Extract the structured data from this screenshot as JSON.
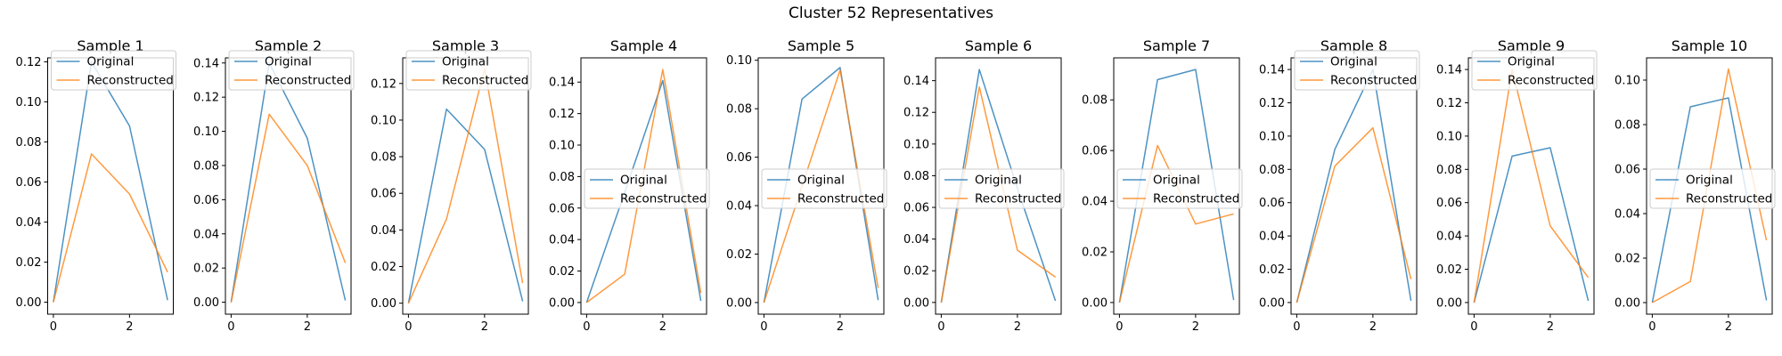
{
  "figure": {
    "title": "Cluster 52 Representatives"
  },
  "colors": {
    "original": "#1f77b4",
    "reconstructed": "#ff7f0e"
  },
  "chart_data": [
    {
      "type": "line",
      "title": "Sample 1",
      "x": [
        0,
        1,
        2,
        3
      ],
      "series": [
        {
          "name": "Original",
          "values": [
            0.0,
            0.12,
            0.088,
            0.001
          ]
        },
        {
          "name": "Reconstructed",
          "values": [
            0.0,
            0.074,
            0.054,
            0.015
          ]
        }
      ],
      "ylim": [
        -0.006,
        0.122
      ],
      "yticks": [
        0.0,
        0.02,
        0.04,
        0.06,
        0.08,
        0.1,
        0.12
      ],
      "yticklabels": [
        "0.00",
        "0.02",
        "0.04",
        "0.06",
        "0.08",
        "0.10",
        "0.12"
      ],
      "xticks": [
        0,
        2
      ],
      "legend": "upper-left"
    },
    {
      "type": "line",
      "title": "Sample 2",
      "x": [
        0,
        1,
        2,
        3
      ],
      "series": [
        {
          "name": "Original",
          "values": [
            0.0,
            0.14,
            0.096,
            0.001
          ]
        },
        {
          "name": "Reconstructed",
          "values": [
            0.0,
            0.11,
            0.08,
            0.023
          ]
        }
      ],
      "ylim": [
        -0.007,
        0.143
      ],
      "yticks": [
        0.0,
        0.02,
        0.04,
        0.06,
        0.08,
        0.1,
        0.12,
        0.14
      ],
      "yticklabels": [
        "0.00",
        "0.02",
        "0.04",
        "0.06",
        "0.08",
        "0.10",
        "0.12",
        "0.14"
      ],
      "xticks": [
        0,
        2
      ],
      "legend": "upper-left"
    },
    {
      "type": "line",
      "title": "Sample 3",
      "x": [
        0,
        1,
        2,
        3
      ],
      "series": [
        {
          "name": "Original",
          "values": [
            0.0,
            0.106,
            0.084,
            0.001
          ]
        },
        {
          "name": "Reconstructed",
          "values": [
            0.0,
            0.046,
            0.128,
            0.011
          ]
        }
      ],
      "ylim": [
        -0.006,
        0.134
      ],
      "yticks": [
        0.0,
        0.02,
        0.04,
        0.06,
        0.08,
        0.1,
        0.12
      ],
      "yticklabels": [
        "0.00",
        "0.02",
        "0.04",
        "0.06",
        "0.08",
        "0.10",
        "0.12"
      ],
      "xticks": [
        0,
        2
      ],
      "legend": "upper-left"
    },
    {
      "type": "line",
      "title": "Sample 4",
      "x": [
        0,
        1,
        2,
        3
      ],
      "series": [
        {
          "name": "Original",
          "values": [
            0.0,
            0.07,
            0.141,
            0.001
          ]
        },
        {
          "name": "Reconstructed",
          "values": [
            0.0,
            0.018,
            0.148,
            0.006
          ]
        }
      ],
      "ylim": [
        -0.0074,
        0.1554
      ],
      "yticks": [
        0.0,
        0.02,
        0.04,
        0.06,
        0.08,
        0.1,
        0.12,
        0.14
      ],
      "yticklabels": [
        "0.00",
        "0.02",
        "0.04",
        "0.06",
        "0.08",
        "0.10",
        "0.12",
        "0.14"
      ],
      "xticks": [
        0,
        2
      ],
      "legend": "center-left"
    },
    {
      "type": "line",
      "title": "Sample 5",
      "x": [
        0,
        1,
        2,
        3
      ],
      "series": [
        {
          "name": "Original",
          "values": [
            0.0,
            0.084,
            0.097,
            0.001
          ]
        },
        {
          "name": "Reconstructed",
          "values": [
            0.0,
            0.048,
            0.096,
            0.006
          ]
        }
      ],
      "ylim": [
        -0.0048,
        0.101
      ],
      "yticks": [
        0.0,
        0.02,
        0.04,
        0.06,
        0.08,
        0.1
      ],
      "yticklabels": [
        "0.00",
        "0.02",
        "0.04",
        "0.06",
        "0.08",
        "0.10"
      ],
      "xticks": [
        0,
        2
      ],
      "legend": "center-left"
    },
    {
      "type": "line",
      "title": "Sample 6",
      "x": [
        0,
        1,
        2,
        3
      ],
      "series": [
        {
          "name": "Original",
          "values": [
            0.0,
            0.147,
            0.072,
            0.001
          ]
        },
        {
          "name": "Reconstructed",
          "values": [
            0.0,
            0.136,
            0.033,
            0.016
          ]
        }
      ],
      "ylim": [
        -0.0074,
        0.1544
      ],
      "yticks": [
        0.0,
        0.02,
        0.04,
        0.06,
        0.08,
        0.1,
        0.12,
        0.14
      ],
      "yticklabels": [
        "0.00",
        "0.02",
        "0.04",
        "0.06",
        "0.08",
        "0.10",
        "0.12",
        "0.14"
      ],
      "xticks": [
        0,
        2
      ],
      "legend": "center-left"
    },
    {
      "type": "line",
      "title": "Sample 7",
      "x": [
        0,
        1,
        2,
        3
      ],
      "series": [
        {
          "name": "Original",
          "values": [
            0.0,
            0.088,
            0.092,
            0.001
          ]
        },
        {
          "name": "Reconstructed",
          "values": [
            0.0,
            0.062,
            0.031,
            0.035
          ]
        }
      ],
      "ylim": [
        -0.0046,
        0.0966
      ],
      "yticks": [
        0.0,
        0.02,
        0.04,
        0.06,
        0.08
      ],
      "yticklabels": [
        "0.00",
        "0.02",
        "0.04",
        "0.06",
        "0.08"
      ],
      "xticks": [
        0,
        2
      ],
      "legend": "center-left"
    },
    {
      "type": "line",
      "title": "Sample 8",
      "x": [
        0,
        1,
        2,
        3
      ],
      "series": [
        {
          "name": "Original",
          "values": [
            0.0,
            0.092,
            0.14,
            0.001
          ]
        },
        {
          "name": "Reconstructed",
          "values": [
            0.0,
            0.082,
            0.105,
            0.014
          ]
        }
      ],
      "ylim": [
        -0.007,
        0.147
      ],
      "yticks": [
        0.0,
        0.02,
        0.04,
        0.06,
        0.08,
        0.1,
        0.12,
        0.14
      ],
      "yticklabels": [
        "0.00",
        "0.02",
        "0.04",
        "0.06",
        "0.08",
        "0.10",
        "0.12",
        "0.14"
      ],
      "xticks": [
        0,
        2
      ],
      "legend": "upper-left"
    },
    {
      "type": "line",
      "title": "Sample 9",
      "x": [
        0,
        1,
        2,
        3
      ],
      "series": [
        {
          "name": "Original",
          "values": [
            0.0,
            0.088,
            0.093,
            0.001
          ]
        },
        {
          "name": "Reconstructed",
          "values": [
            0.0,
            0.14,
            0.046,
            0.015
          ]
        }
      ],
      "ylim": [
        -0.007,
        0.147
      ],
      "yticks": [
        0.0,
        0.02,
        0.04,
        0.06,
        0.08,
        0.1,
        0.12,
        0.14
      ],
      "yticklabels": [
        "0.00",
        "0.02",
        "0.04",
        "0.06",
        "0.08",
        "0.10",
        "0.12",
        "0.14"
      ],
      "xticks": [
        0,
        2
      ],
      "legend": "upper-left"
    },
    {
      "type": "line",
      "title": "Sample 10",
      "x": [
        0,
        1,
        2,
        3
      ],
      "series": [
        {
          "name": "Original",
          "values": [
            0.0,
            0.088,
            0.092,
            0.001
          ]
        },
        {
          "name": "Reconstructed",
          "values": [
            0.0,
            0.0095,
            0.105,
            0.028
          ]
        }
      ],
      "ylim": [
        -0.0052,
        0.11
      ],
      "yticks": [
        0.0,
        0.02,
        0.04,
        0.06,
        0.08,
        0.1
      ],
      "yticklabels": [
        "0.00",
        "0.02",
        "0.04",
        "0.06",
        "0.08",
        "0.10"
      ],
      "xticks": [
        0,
        2
      ],
      "legend": "center-left"
    }
  ]
}
